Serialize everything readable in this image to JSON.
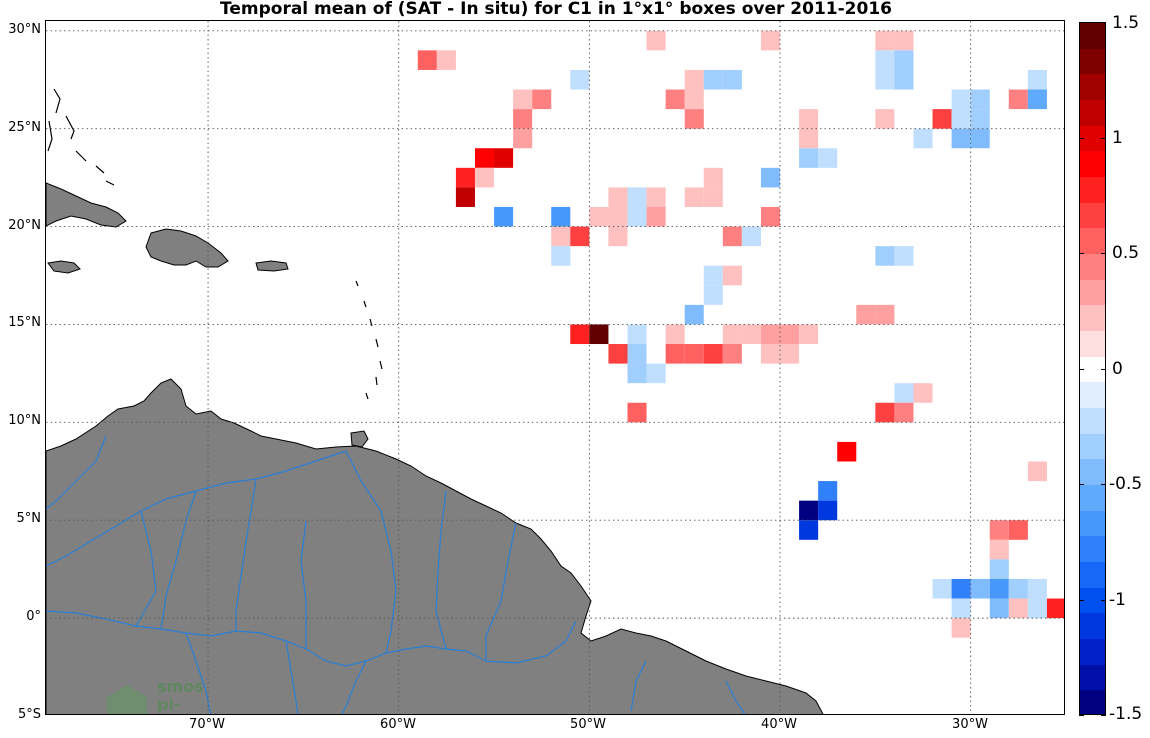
{
  "title": "Temporal mean of (SAT - In situ) for C1 in 1°x1° boxes over 2011-2016",
  "axes": {
    "lon_range": [
      -78.5,
      -25
    ],
    "lat_range": [
      -5,
      30.5
    ],
    "y_ticks": [
      {
        "value": 30,
        "label": "30°N"
      },
      {
        "value": 25,
        "label": "25°N"
      },
      {
        "value": 20,
        "label": "20°N"
      },
      {
        "value": 15,
        "label": "15°N"
      },
      {
        "value": 10,
        "label": "10°N"
      },
      {
        "value": 5,
        "label": "5°N"
      },
      {
        "value": 0,
        "label": "0°"
      },
      {
        "value": -5,
        "label": "5°S"
      }
    ],
    "x_ticks": [
      {
        "value": -70,
        "label": "70°W"
      },
      {
        "value": -60,
        "label": "60°W"
      },
      {
        "value": -50,
        "label": "50°W"
      },
      {
        "value": -40,
        "label": "40°W"
      },
      {
        "value": -30,
        "label": "30°W"
      }
    ]
  },
  "colorbar": {
    "range": [
      -1.5,
      1.5
    ],
    "ticks": [
      {
        "value": 1.5,
        "label": "1.5"
      },
      {
        "value": 1,
        "label": "1"
      },
      {
        "value": 0.5,
        "label": "0.5"
      },
      {
        "value": 0,
        "label": "0"
      },
      {
        "value": -0.5,
        "label": "-0.5"
      },
      {
        "value": -1,
        "label": "-1"
      },
      {
        "value": -1.5,
        "label": "-1.5"
      }
    ]
  },
  "colors": {
    "land": "#808080",
    "rivers": "#2a7fd4",
    "grid": "#555555",
    "coast": "#000000"
  },
  "watermark": {
    "line1": "smos",
    "line2": "pi-mep"
  },
  "chart_data": {
    "type": "heatmap",
    "title": "Temporal mean of (SAT - In situ) for C1 in 1°x1° boxes over 2011-2016",
    "cell_size_deg": 1,
    "value_range": [
      -1.5,
      1.5
    ],
    "cells": [
      {
        "lon": -58.5,
        "lat": 28.5,
        "value": 0.55
      },
      {
        "lon": -57.5,
        "lat": 28.5,
        "value": 0.2
      },
      {
        "lon": -46.5,
        "lat": 29.5,
        "value": 0.2
      },
      {
        "lon": -40.5,
        "lat": 29.5,
        "value": 0.2
      },
      {
        "lon": -34.5,
        "lat": 29.5,
        "value": 0.2
      },
      {
        "lon": -33.5,
        "lat": 29.5,
        "value": 0.2
      },
      {
        "lon": -50.5,
        "lat": 27.5,
        "value": -0.15
      },
      {
        "lon": -44.5,
        "lat": 27.5,
        "value": 0.2
      },
      {
        "lon": -43.5,
        "lat": 27.5,
        "value": -0.3
      },
      {
        "lon": -42.5,
        "lat": 27.5,
        "value": -0.3
      },
      {
        "lon": -34.5,
        "lat": 27.5,
        "value": -0.15
      },
      {
        "lon": -33.5,
        "lat": 27.5,
        "value": -0.3
      },
      {
        "lon": -26.5,
        "lat": 27.5,
        "value": -0.15
      },
      {
        "lon": -34.5,
        "lat": 28.5,
        "value": -0.15
      },
      {
        "lon": -33.5,
        "lat": 28.5,
        "value": -0.3
      },
      {
        "lon": -53.5,
        "lat": 26.5,
        "value": 0.2
      },
      {
        "lon": -52.5,
        "lat": 26.5,
        "value": 0.35
      },
      {
        "lon": -45.5,
        "lat": 26.5,
        "value": 0.35
      },
      {
        "lon": -44.5,
        "lat": 26.5,
        "value": 0.2
      },
      {
        "lon": -30.5,
        "lat": 26.5,
        "value": -0.15
      },
      {
        "lon": -29.5,
        "lat": 26.5,
        "value": -0.3
      },
      {
        "lon": -27.5,
        "lat": 26.5,
        "value": 0.35
      },
      {
        "lon": -26.5,
        "lat": 26.5,
        "value": -0.55
      },
      {
        "lon": -53.5,
        "lat": 25.5,
        "value": 0.45
      },
      {
        "lon": -44.5,
        "lat": 25.5,
        "value": 0.35
      },
      {
        "lon": -38.5,
        "lat": 25.5,
        "value": 0.2
      },
      {
        "lon": -34.5,
        "lat": 25.5,
        "value": 0.2
      },
      {
        "lon": -31.5,
        "lat": 25.5,
        "value": 0.6
      },
      {
        "lon": -30.5,
        "lat": 25.5,
        "value": -0.15
      },
      {
        "lon": -29.5,
        "lat": 25.5,
        "value": -0.3
      },
      {
        "lon": -53.5,
        "lat": 24.5,
        "value": 0.25
      },
      {
        "lon": -38.5,
        "lat": 24.5,
        "value": 0.2
      },
      {
        "lon": -32.5,
        "lat": 24.5,
        "value": -0.15
      },
      {
        "lon": -30.5,
        "lat": 24.5,
        "value": -0.45
      },
      {
        "lon": -29.5,
        "lat": 24.5,
        "value": -0.45
      },
      {
        "lon": -55.5,
        "lat": 23.5,
        "value": 0.85
      },
      {
        "lon": -54.5,
        "lat": 23.5,
        "value": 0.95
      },
      {
        "lon": -38.5,
        "lat": 23.5,
        "value": -0.3
      },
      {
        "lon": -37.5,
        "lat": 23.5,
        "value": -0.15
      },
      {
        "lon": -56.5,
        "lat": 22.5,
        "value": 0.75
      },
      {
        "lon": -55.5,
        "lat": 22.5,
        "value": 0.2
      },
      {
        "lon": -43.5,
        "lat": 22.5,
        "value": 0.2
      },
      {
        "lon": -40.5,
        "lat": 22.5,
        "value": -0.4
      },
      {
        "lon": -56.5,
        "lat": 21.5,
        "value": 1.05
      },
      {
        "lon": -48.5,
        "lat": 21.5,
        "value": 0.2
      },
      {
        "lon": -47.5,
        "lat": 21.5,
        "value": -0.15
      },
      {
        "lon": -46.5,
        "lat": 21.5,
        "value": 0.2
      },
      {
        "lon": -44.5,
        "lat": 21.5,
        "value": 0.2
      },
      {
        "lon": -43.5,
        "lat": 21.5,
        "value": 0.2
      },
      {
        "lon": -54.5,
        "lat": 20.5,
        "value": -0.6
      },
      {
        "lon": -51.5,
        "lat": 20.5,
        "value": -0.6
      },
      {
        "lon": -49.5,
        "lat": 20.5,
        "value": 0.2
      },
      {
        "lon": -48.5,
        "lat": 20.5,
        "value": 0.2
      },
      {
        "lon": -47.5,
        "lat": 20.5,
        "value": -0.15
      },
      {
        "lon": -46.5,
        "lat": 20.5,
        "value": 0.3
      },
      {
        "lon": -40.5,
        "lat": 20.5,
        "value": 0.35
      },
      {
        "lon": -51.5,
        "lat": 19.5,
        "value": 0.2
      },
      {
        "lon": -50.5,
        "lat": 19.5,
        "value": 0.6
      },
      {
        "lon": -48.5,
        "lat": 19.5,
        "value": 0.2
      },
      {
        "lon": -42.5,
        "lat": 19.5,
        "value": 0.35
      },
      {
        "lon": -41.5,
        "lat": 19.5,
        "value": -0.15
      },
      {
        "lon": -51.5,
        "lat": 18.5,
        "value": -0.15
      },
      {
        "lon": -34.5,
        "lat": 18.5,
        "value": -0.3
      },
      {
        "lon": -33.5,
        "lat": 18.5,
        "value": -0.15
      },
      {
        "lon": -43.5,
        "lat": 17.5,
        "value": -0.15
      },
      {
        "lon": -42.5,
        "lat": 17.5,
        "value": 0.2
      },
      {
        "lon": -43.5,
        "lat": 16.5,
        "value": -0.15
      },
      {
        "lon": -44.5,
        "lat": 15.5,
        "value": -0.45
      },
      {
        "lon": -35.5,
        "lat": 15.5,
        "value": 0.3
      },
      {
        "lon": -34.5,
        "lat": 15.5,
        "value": 0.3
      },
      {
        "lon": -50.5,
        "lat": 14.5,
        "value": 0.7
      },
      {
        "lon": -49.5,
        "lat": 14.5,
        "value": 1.5
      },
      {
        "lon": -47.5,
        "lat": 14.5,
        "value": -0.15
      },
      {
        "lon": -45.5,
        "lat": 14.5,
        "value": 0.2
      },
      {
        "lon": -42.5,
        "lat": 14.5,
        "value": 0.2
      },
      {
        "lon": -41.5,
        "lat": 14.5,
        "value": 0.2
      },
      {
        "lon": -40.5,
        "lat": 14.5,
        "value": 0.3
      },
      {
        "lon": -39.5,
        "lat": 14.5,
        "value": 0.3
      },
      {
        "lon": -38.5,
        "lat": 14.5,
        "value": 0.2
      },
      {
        "lon": -48.5,
        "lat": 13.5,
        "value": 0.6
      },
      {
        "lon": -47.5,
        "lat": 13.5,
        "value": -0.25
      },
      {
        "lon": -45.5,
        "lat": 13.5,
        "value": 0.55
      },
      {
        "lon": -44.5,
        "lat": 13.5,
        "value": 0.55
      },
      {
        "lon": -43.5,
        "lat": 13.5,
        "value": 0.65
      },
      {
        "lon": -42.5,
        "lat": 13.5,
        "value": 0.45
      },
      {
        "lon": -40.5,
        "lat": 13.5,
        "value": 0.2
      },
      {
        "lon": -39.5,
        "lat": 13.5,
        "value": 0.2
      },
      {
        "lon": -47.5,
        "lat": 12.5,
        "value": -0.3
      },
      {
        "lon": -46.5,
        "lat": 12.5,
        "value": -0.15
      },
      {
        "lon": -33.5,
        "lat": 11.5,
        "value": -0.15
      },
      {
        "lon": -32.5,
        "lat": 11.5,
        "value": 0.2
      },
      {
        "lon": -47.5,
        "lat": 10.5,
        "value": 0.55
      },
      {
        "lon": -34.5,
        "lat": 10.5,
        "value": 0.65
      },
      {
        "lon": -33.5,
        "lat": 10.5,
        "value": 0.45
      },
      {
        "lon": -36.5,
        "lat": 8.5,
        "value": 0.85
      },
      {
        "lon": -26.5,
        "lat": 7.5,
        "value": 0.2
      },
      {
        "lon": -37.5,
        "lat": 6.5,
        "value": -0.8
      },
      {
        "lon": -38.5,
        "lat": 5.5,
        "value": -1.4
      },
      {
        "lon": -37.5,
        "lat": 5.5,
        "value": -1.1
      },
      {
        "lon": -38.5,
        "lat": 4.5,
        "value": -1.1
      },
      {
        "lon": -28.5,
        "lat": 4.5,
        "value": 0.4
      },
      {
        "lon": -27.5,
        "lat": 4.5,
        "value": 0.55
      },
      {
        "lon": -28.5,
        "lat": 3.5,
        "value": 0.2
      },
      {
        "lon": -28.5,
        "lat": 2.5,
        "value": -0.3
      },
      {
        "lon": -31.5,
        "lat": 1.5,
        "value": -0.15
      },
      {
        "lon": -30.5,
        "lat": 1.5,
        "value": -0.8
      },
      {
        "lon": -29.5,
        "lat": 1.5,
        "value": -0.45
      },
      {
        "lon": -28.5,
        "lat": 1.5,
        "value": -0.6
      },
      {
        "lon": -27.5,
        "lat": 1.5,
        "value": -0.3
      },
      {
        "lon": -26.5,
        "lat": 1.5,
        "value": -0.15
      },
      {
        "lon": -30.5,
        "lat": 0.5,
        "value": -0.15
      },
      {
        "lon": -28.5,
        "lat": 0.5,
        "value": -0.4
      },
      {
        "lon": -27.5,
        "lat": 0.5,
        "value": 0.2
      },
      {
        "lon": -26.5,
        "lat": 0.5,
        "value": -0.15
      },
      {
        "lon": -25.5,
        "lat": 0.5,
        "value": 0.7
      },
      {
        "lon": -30.5,
        "lat": -0.5,
        "value": 0.2
      }
    ]
  }
}
